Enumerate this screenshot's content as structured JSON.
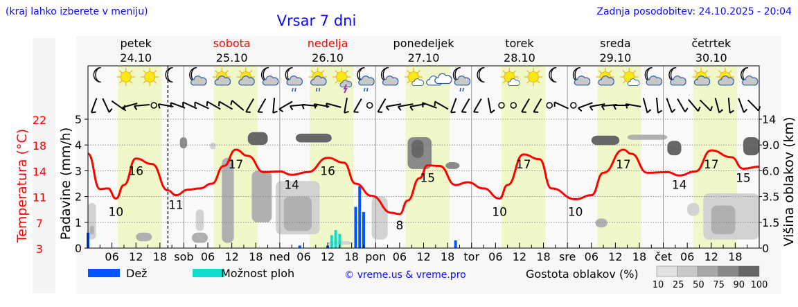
{
  "header": {
    "hint": "(kraj lahko izberete v meniju)",
    "title": "Vrsar 7 dni",
    "updated": "Zadnja posodobitev: 24.10.2025 - 20:04"
  },
  "colors": {
    "temp": "#ff0000",
    "rain": "#0055ff",
    "shower": "#11ddcc",
    "daylight": "#f0f7c8",
    "link": "#0a0aff"
  },
  "days": [
    {
      "name": "petek",
      "date": "24.10",
      "color": "#000000"
    },
    {
      "name": "sobota",
      "date": "25.10",
      "color": "#ff0000"
    },
    {
      "name": "nedelja",
      "date": "26.10",
      "color": "#ff0000"
    },
    {
      "name": "ponedeljek",
      "date": "27.10",
      "color": "#000000"
    },
    {
      "name": "torek",
      "date": "28.10",
      "color": "#000000"
    },
    {
      "name": "sreda",
      "date": "29.10",
      "color": "#000000"
    },
    {
      "name": "četrtek",
      "date": "30.10",
      "color": "#000000"
    }
  ],
  "legend": {
    "rain": "Dež",
    "shower": "Možnost ploh",
    "copyright": "© vreme.us & vreme.pro",
    "cloud_density": "Gostota oblakov (%)",
    "density_ticks": [
      "10",
      "25",
      "50",
      "75",
      "90",
      "100"
    ]
  },
  "chart_data": {
    "type": "line",
    "x_unit": "hours from Fri 24.10 00:00",
    "xlim": [
      0,
      168
    ],
    "now_hour": 20,
    "daylight": [
      7.5,
      18.5
    ],
    "x_tick_hours": [
      "06",
      "12",
      "18"
    ],
    "day_abbr": [
      "",
      "sob",
      "ned",
      "pon",
      "tor",
      "sre",
      "čet"
    ],
    "y_left_temp": {
      "label": "Temperatura (°C)",
      "ticks": [
        "22",
        "18",
        "14",
        "11",
        "7",
        "3"
      ],
      "ylim": [
        3,
        22
      ]
    },
    "y_left_precip": {
      "label": "Padavine (mm/h)",
      "ticks": [
        "5",
        "4",
        "3",
        "2",
        "1",
        "0"
      ],
      "ylim": [
        0,
        5
      ]
    },
    "y_right_cloud": {
      "label": "Višina oblakov (km)",
      "ticks": [
        "14",
        "9.0",
        "6.0",
        "3.5",
        "1.5",
        "0"
      ]
    },
    "temperature": [
      [
        0,
        16.9
      ],
      [
        3,
        11.7
      ],
      [
        5,
        11.8
      ],
      [
        7,
        10.3
      ],
      [
        9,
        12.3
      ],
      [
        12,
        16.2
      ],
      [
        16,
        15.4
      ],
      [
        20,
        11.5
      ],
      [
        22,
        10.8
      ],
      [
        25,
        11.6
      ],
      [
        28,
        11.8
      ],
      [
        31,
        12.5
      ],
      [
        34,
        15.1
      ],
      [
        37,
        17.5
      ],
      [
        40,
        16.6
      ],
      [
        44,
        14.2
      ],
      [
        48,
        14.3
      ],
      [
        51,
        13.8
      ],
      [
        55,
        14.2
      ],
      [
        60,
        16.3
      ],
      [
        64,
        15.6
      ],
      [
        67,
        12.5
      ],
      [
        71,
        10.7
      ],
      [
        76,
        8.2
      ],
      [
        78,
        8.0
      ],
      [
        80,
        10.0
      ],
      [
        83,
        13.3
      ],
      [
        85,
        15.2
      ],
      [
        88,
        15.1
      ],
      [
        92,
        12.3
      ],
      [
        95,
        12.7
      ],
      [
        99,
        11.8
      ],
      [
        103,
        10.3
      ],
      [
        105,
        12.3
      ],
      [
        109,
        16.8
      ],
      [
        113,
        16.1
      ],
      [
        116,
        11.8
      ],
      [
        122,
        10.2
      ],
      [
        126,
        10.8
      ],
      [
        129,
        14.1
      ],
      [
        134,
        17.5
      ],
      [
        136,
        16.9
      ],
      [
        140,
        14.1
      ],
      [
        145,
        14.2
      ],
      [
        148,
        13.7
      ],
      [
        152,
        14.3
      ],
      [
        156,
        17.4
      ],
      [
        161,
        16.4
      ],
      [
        164,
        14.7
      ],
      [
        168,
        15.0
      ]
    ],
    "temp_labels": [
      {
        "h": 7,
        "v": "10"
      },
      {
        "h": 12,
        "v": "16"
      },
      {
        "h": 22,
        "v": "11"
      },
      {
        "h": 37,
        "v": "17"
      },
      {
        "h": 51,
        "v": "14"
      },
      {
        "h": 60,
        "v": "16"
      },
      {
        "h": 78,
        "v": "8"
      },
      {
        "h": 85,
        "v": "15"
      },
      {
        "h": 103,
        "v": "10"
      },
      {
        "h": 109,
        "v": "17"
      },
      {
        "h": 122,
        "v": "10"
      },
      {
        "h": 134,
        "v": "17"
      },
      {
        "h": 148,
        "v": "14"
      },
      {
        "h": 156,
        "v": "17"
      },
      {
        "h": 164,
        "v": "15"
      }
    ],
    "rain": [
      [
        0,
        0.6
      ],
      [
        53,
        0.1
      ],
      [
        60,
        0.1
      ],
      [
        67,
        1.6
      ],
      [
        68,
        2.4
      ],
      [
        69,
        1.4
      ],
      [
        92,
        0.3
      ]
    ],
    "shower": [
      [
        61,
        0.5
      ],
      [
        62,
        0.7
      ],
      [
        63,
        0.55
      ]
    ],
    "clouds": [
      {
        "h0": 0,
        "h1": 2,
        "k0": 0.5,
        "k1": 3,
        "d": 25
      },
      {
        "h0": 0.5,
        "h1": 1.5,
        "k0": 0.8,
        "k1": 1.3,
        "d": 50
      },
      {
        "h0": 23,
        "h1": 24.8,
        "k0": 8.6,
        "k1": 10.5,
        "d": 75
      },
      {
        "h0": 30.5,
        "h1": 32,
        "k0": 8.5,
        "k1": 9.5,
        "d": 25
      },
      {
        "h0": 33.5,
        "h1": 36.5,
        "k0": 0.3,
        "k1": 7.5,
        "d": 50
      },
      {
        "h0": 40,
        "h1": 45,
        "k0": 9,
        "k1": 11.5,
        "d": 90
      },
      {
        "h0": 41,
        "h1": 46,
        "k0": 1.5,
        "k1": 6,
        "d": 50
      },
      {
        "h0": 47,
        "h1": 58,
        "k0": 0.8,
        "k1": 5,
        "d": 25
      },
      {
        "h0": 49,
        "h1": 56,
        "k0": 1,
        "k1": 3.5,
        "d": 50
      },
      {
        "h0": 52,
        "h1": 61,
        "k0": 9.5,
        "k1": 11.2,
        "d": 90
      },
      {
        "h0": 26,
        "h1": 30,
        "k0": 0.3,
        "k1": 0.9,
        "d": 50
      },
      {
        "h0": 12,
        "h1": 16,
        "k0": 0.4,
        "k1": 0.9,
        "d": 50
      },
      {
        "h0": 27,
        "h1": 29,
        "k0": 1,
        "k1": 2.5,
        "d": 25
      },
      {
        "h0": 71,
        "h1": 75,
        "k0": 0.5,
        "k1": 3.5,
        "d": 25
      },
      {
        "h0": 80,
        "h1": 86,
        "k0": 6.2,
        "k1": 10.5,
        "d": 75
      },
      {
        "h0": 81,
        "h1": 84,
        "k0": 7.5,
        "k1": 10,
        "d": 90
      },
      {
        "h0": 89.5,
        "h1": 93,
        "k0": 6.2,
        "k1": 7,
        "d": 75
      },
      {
        "h0": 126,
        "h1": 133,
        "k0": 9,
        "k1": 10.8,
        "d": 90
      },
      {
        "h0": 135,
        "h1": 145,
        "k0": 10,
        "k1": 11,
        "d": 50
      },
      {
        "h0": 145,
        "h1": 148.5,
        "k0": 7.8,
        "k1": 9.8,
        "d": 90
      },
      {
        "h0": 164,
        "h1": 168,
        "k0": 7.8,
        "k1": 10.5,
        "d": 90
      },
      {
        "h0": 154,
        "h1": 168,
        "k0": 0.5,
        "k1": 3.8,
        "d": 25
      },
      {
        "h0": 156,
        "h1": 162,
        "k0": 0.8,
        "k1": 2.8,
        "d": 50
      },
      {
        "h0": 150,
        "h1": 153,
        "k0": 2,
        "k1": 3,
        "d": 25
      },
      {
        "h0": 127,
        "h1": 130,
        "k0": 1.2,
        "k1": 1.8,
        "d": 50
      },
      {
        "h0": 60,
        "h1": 66,
        "k0": 0.2,
        "k1": 0.4,
        "d": 25
      }
    ],
    "icons": [
      "moon",
      "sun",
      "sun",
      "moon",
      "moon-cloud",
      "sun-cloud",
      "sun-cloud",
      "moon-cloud",
      "moon-cloud-rain",
      "sun-cloud-rain",
      "sun-thunder",
      "moon-cloud-rain",
      "moon-cloud",
      "sun-small-cloud",
      "clouds",
      "moon-cloud-rain",
      "moon",
      "sun-small-cloud",
      "sun",
      "moon",
      "moon-cloud",
      "sun-cloud",
      "sun-small-cloud",
      "moon-cloud",
      "moon-cloud",
      "sun-cloud",
      "sun-cloud",
      "moon-cloud"
    ],
    "wind_dir_deg": [
      20,
      -25,
      -55,
      75,
      85,
      null,
      100,
      110,
      115,
      115,
      120,
      120,
      130,
      30,
      30,
      5,
      60,
      85,
      95,
      100,
      105,
      10,
      30,
      null,
      30,
      80,
      80,
      80,
      110,
      120,
      20,
      30,
      30,
      -10,
      null,
      null,
      30,
      30,
      null,
      115,
      null,
      70,
      80,
      85,
      90,
      100,
      -15,
      -5,
      -20,
      -30,
      -40,
      -45,
      -15,
      -5,
      -20,
      -45
    ]
  }
}
